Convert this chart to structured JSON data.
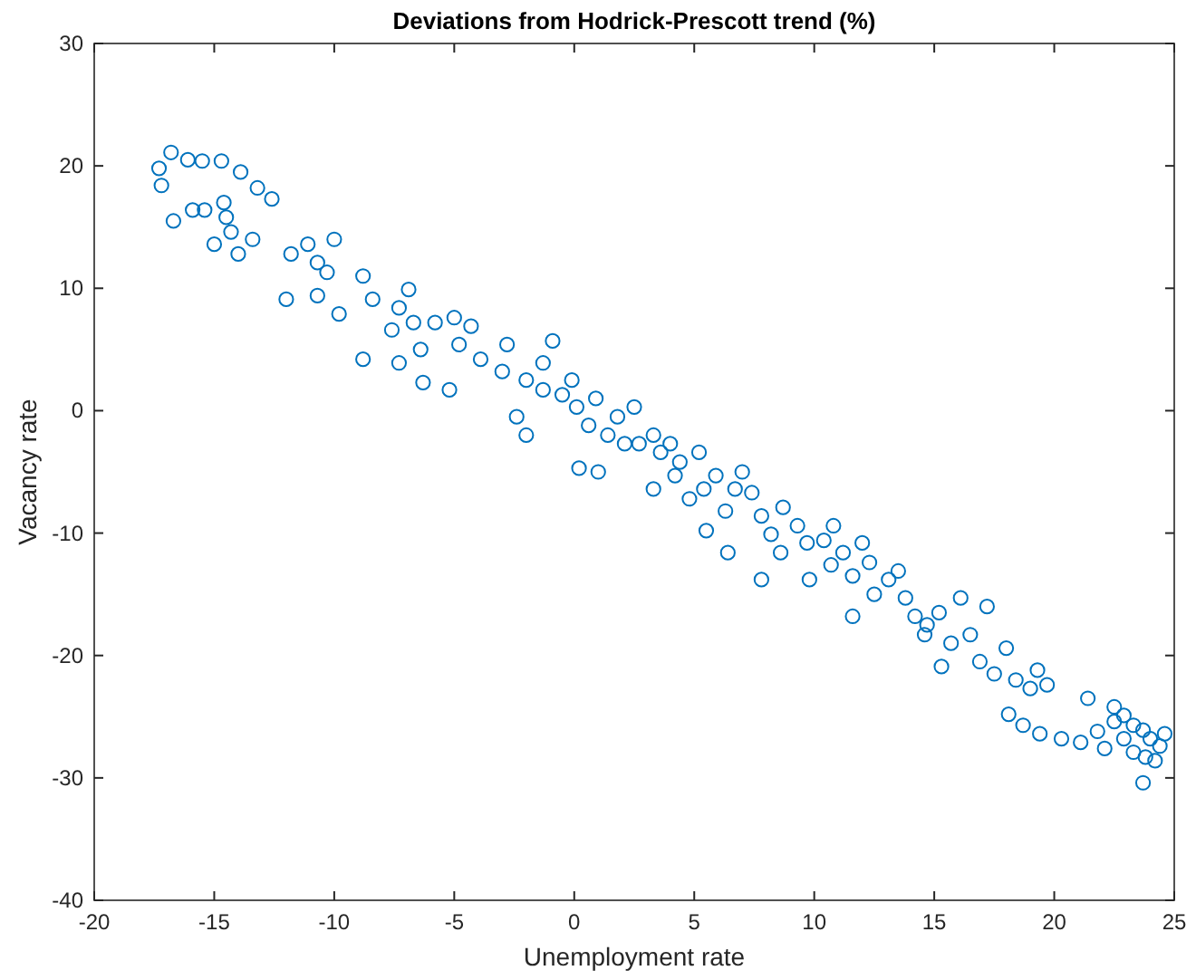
{
  "chart_data": {
    "type": "scatter",
    "title": "Deviations from Hodrick-Prescott trend (%)",
    "xlabel": "Unemployment rate",
    "ylabel": "Vacancy rate",
    "marker": "circle",
    "xlim": [
      -20,
      25
    ],
    "ylim": [
      -40,
      30
    ],
    "xticks": [
      -20,
      -15,
      -10,
      -5,
      0,
      5,
      10,
      15,
      20,
      25
    ],
    "yticks": [
      -40,
      -30,
      -20,
      -10,
      0,
      10,
      20,
      30
    ],
    "series": [
      {
        "color": "#0072bd",
        "x": [
          -16.8,
          -17.3,
          -17.2,
          -16.1,
          -15.5,
          -14.7,
          -13.9,
          -16.7,
          -15.9,
          -15.4,
          -14.6,
          -13.2,
          -12.6,
          -14.5,
          -14.3,
          -15.0,
          -14.0,
          -13.4,
          -11.8,
          -10.7,
          -11.1,
          -10.3,
          -10.0,
          -12.0,
          -10.7,
          -9.8,
          -8.8,
          -8.4,
          -7.3,
          -6.9,
          -6.7,
          -7.6,
          -5.8,
          -5.0,
          -4.3,
          -6.4,
          -8.8,
          -7.3,
          -6.3,
          -5.2,
          -4.8,
          -3.9,
          -2.8,
          -3.0,
          -2.0,
          -1.3,
          -0.9,
          -0.5,
          0.1,
          0.2,
          0.6,
          0.9,
          1.8,
          2.5,
          2.7,
          3.3,
          3.6,
          4.4,
          5.2,
          5.4,
          5.9,
          6.7,
          4.8,
          5.5,
          7.4,
          7.8,
          8.2,
          8.7,
          9.3,
          9.7,
          10.4,
          9.8,
          10.7,
          11.2,
          11.6,
          12.3,
          12.5,
          13.1,
          13.8,
          14.2,
          14.7,
          15.2,
          14.6,
          15.7,
          15.3,
          16.5,
          16.9,
          17.5,
          18.0,
          18.4,
          19.0,
          19.3,
          19.7,
          18.1,
          18.7,
          19.4,
          20.3,
          21.1,
          21.8,
          22.1,
          22.5,
          22.9,
          23.3,
          23.7,
          24.0,
          24.4,
          24.6,
          23.8,
          23.7,
          23.3,
          22.9,
          24.2,
          21.4,
          22.5,
          -1.3,
          -0.1,
          1.4,
          2.1,
          4.0,
          4.2,
          6.3,
          7.0,
          8.6,
          10.8,
          12.0,
          13.5,
          16.1,
          17.2,
          11.6,
          7.8,
          6.4,
          3.3,
          1.0,
          -2.0,
          -2.4
        ],
        "values": [
          21.1,
          19.8,
          18.4,
          20.5,
          20.4,
          20.4,
          19.5,
          15.5,
          16.4,
          16.4,
          17.0,
          18.2,
          17.3,
          15.8,
          14.6,
          13.6,
          12.8,
          14.0,
          12.8,
          12.1,
          13.6,
          11.3,
          14.0,
          9.1,
          9.4,
          7.9,
          11.0,
          9.1,
          8.4,
          9.9,
          7.2,
          6.6,
          7.2,
          7.6,
          6.9,
          5.0,
          4.2,
          3.9,
          2.3,
          1.7,
          5.4,
          4.2,
          5.4,
          3.2,
          2.5,
          3.9,
          5.7,
          1.3,
          0.3,
          -4.7,
          -1.2,
          1.0,
          -0.5,
          0.3,
          -2.7,
          -2.0,
          -3.4,
          -4.2,
          -3.4,
          -6.4,
          -5.3,
          -6.4,
          -7.2,
          -9.8,
          -6.7,
          -8.6,
          -10.1,
          -7.9,
          -9.4,
          -10.8,
          -10.6,
          -13.8,
          -12.6,
          -11.6,
          -13.5,
          -12.4,
          -15.0,
          -13.8,
          -15.3,
          -16.8,
          -17.5,
          -16.5,
          -18.3,
          -19.0,
          -20.9,
          -18.3,
          -20.5,
          -21.5,
          -19.4,
          -22.0,
          -22.7,
          -21.2,
          -22.4,
          -24.8,
          -25.7,
          -26.4,
          -26.8,
          -27.1,
          -26.2,
          -27.6,
          -25.4,
          -24.9,
          -25.7,
          -26.1,
          -26.8,
          -27.4,
          -26.4,
          -28.3,
          -30.4,
          -27.9,
          -26.8,
          -28.6,
          -23.5,
          -24.2,
          1.7,
          2.5,
          -2.0,
          -2.7,
          -2.7,
          -5.3,
          -8.2,
          -5.0,
          -11.6,
          -9.4,
          -10.8,
          -13.1,
          -15.3,
          -16.0,
          -16.8,
          -13.8,
          -11.6,
          -6.4,
          -5.0,
          -2.0,
          -0.5
        ]
      }
    ]
  }
}
